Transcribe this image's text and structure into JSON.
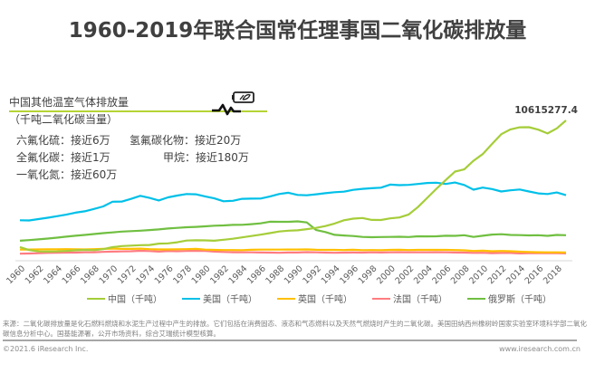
{
  "title": "1960-2019年联合国常任理事国二氧化碳排放量",
  "side_note": {
    "heading": "中国其他温室气体排放量",
    "subheading": "（千吨二氧化碳当量）",
    "items": [
      {
        "name": "六氟化硫：",
        "value": "接近6万"
      },
      {
        "name": "氢氟碳化物：",
        "value": "接近20万"
      },
      {
        "name": "全氟化碳：",
        "value": "接近1万"
      },
      {
        "name": "甲烷：",
        "value": "接近180万"
      },
      {
        "name": "一氧化氮：",
        "value": "接近60万"
      }
    ],
    "icon": "battery-leaf-pulse-icon"
  },
  "chart_data": {
    "type": "line",
    "title": "1960-2019年联合国常任理事国二氧化碳排放量",
    "xlabel": "",
    "ylabel": "千吨",
    "grid": false,
    "legend_position": "bottom",
    "x": [
      1960,
      1961,
      1962,
      1963,
      1964,
      1965,
      1966,
      1967,
      1968,
      1969,
      1970,
      1971,
      1972,
      1973,
      1974,
      1975,
      1976,
      1977,
      1978,
      1979,
      1980,
      1981,
      1982,
      1983,
      1984,
      1985,
      1986,
      1987,
      1988,
      1989,
      1990,
      1991,
      1992,
      1993,
      1994,
      1995,
      1996,
      1997,
      1998,
      1999,
      2000,
      2001,
      2002,
      2003,
      2004,
      2005,
      2006,
      2007,
      2008,
      2009,
      2010,
      2011,
      2012,
      2013,
      2014,
      2015,
      2016,
      2017,
      2018,
      2019
    ],
    "x_tick_labels": [
      "1960",
      "1962",
      "1964",
      "1966",
      "1968",
      "1970",
      "1972",
      "1974",
      "1976",
      "1978",
      "1980",
      "1982",
      "1984",
      "1986",
      "1988",
      "1990",
      "1992",
      "1994",
      "1996",
      "1998",
      "2000",
      "2002",
      "2004",
      "2006",
      "2008",
      "2010",
      "2012",
      "2014",
      "2016",
      "2018"
    ],
    "ylim": [
      0,
      11000000
    ],
    "annotation": {
      "series": "中国（千吨）",
      "x": 2019,
      "label": "10615277.4"
    },
    "series": [
      {
        "name": "中国（千吨）",
        "color": "#a5cd39",
        "values": [
          780000,
          550000,
          440000,
          430000,
          440000,
          480000,
          530000,
          560000,
          540000,
          620000,
          770000,
          860000,
          890000,
          930000,
          940000,
          1050000,
          1070000,
          1150000,
          1290000,
          1310000,
          1300000,
          1270000,
          1350000,
          1430000,
          1530000,
          1640000,
          1740000,
          1860000,
          1990000,
          2050000,
          2080000,
          2170000,
          2270000,
          2410000,
          2610000,
          2860000,
          2990000,
          3040000,
          2890000,
          2880000,
          3010000,
          3080000,
          3310000,
          3890000,
          4600000,
          5310000,
          5980000,
          6640000,
          6810000,
          7480000,
          8000000,
          8780000,
          9550000,
          9920000,
          10080000,
          10090000,
          9900000,
          9600000,
          10000000,
          10615277.4
        ]
      },
      {
        "name": "美国（千吨）",
        "color": "#00c0e8",
        "values": [
          2860000,
          2850000,
          2950000,
          3060000,
          3180000,
          3300000,
          3450000,
          3560000,
          3740000,
          3940000,
          4300000,
          4310000,
          4520000,
          4760000,
          4600000,
          4400000,
          4640000,
          4780000,
          4900000,
          4880000,
          4720000,
          4560000,
          4340000,
          4370000,
          4530000,
          4540000,
          4550000,
          4700000,
          4900000,
          5000000,
          4830000,
          4800000,
          4880000,
          4960000,
          5040000,
          5080000,
          5220000,
          5300000,
          5350000,
          5390000,
          5630000,
          5590000,
          5610000,
          5680000,
          5760000,
          5780000,
          5680000,
          5790000,
          5600000,
          5240000,
          5400000,
          5290000,
          5100000,
          5190000,
          5250000,
          5100000,
          4950000,
          4900000,
          5020000,
          4810000
        ]
      },
      {
        "name": "英国（千吨）",
        "color": "#ffc000",
        "values": [
          585000,
          590000,
          600000,
          610000,
          605000,
          620000,
          615000,
          600000,
          620000,
          640000,
          660000,
          640000,
          640000,
          660000,
          620000,
          600000,
          600000,
          610000,
          620000,
          640000,
          580000,
          560000,
          550000,
          550000,
          540000,
          570000,
          580000,
          580000,
          580000,
          590000,
          590000,
          600000,
          570000,
          560000,
          560000,
          550000,
          570000,
          540000,
          550000,
          540000,
          560000,
          570000,
          550000,
          560000,
          560000,
          560000,
          560000,
          550000,
          530000,
          480000,
          500000,
          460000,
          480000,
          460000,
          420000,
          400000,
          380000,
          370000,
          370000,
          360000
        ]
      },
      {
        "name": "法国（千吨）",
        "color": "#ff7c80",
        "values": [
          270000,
          280000,
          300000,
          330000,
          340000,
          350000,
          350000,
          370000,
          380000,
          410000,
          430000,
          440000,
          460000,
          490000,
          470000,
          430000,
          470000,
          460000,
          480000,
          490000,
          480000,
          430000,
          400000,
          380000,
          370000,
          370000,
          360000,
          350000,
          340000,
          360000,
          360000,
          390000,
          370000,
          350000,
          340000,
          350000,
          360000,
          350000,
          370000,
          360000,
          370000,
          380000,
          370000,
          370000,
          370000,
          380000,
          370000,
          360000,
          350000,
          330000,
          340000,
          310000,
          320000,
          320000,
          290000,
          300000,
          310000,
          310000,
          300000,
          290000
        ]
      },
      {
        "name": "俄罗斯（千吨）",
        "color": "#70bf41",
        "values": [
          1270000,
          1320000,
          1380000,
          1440000,
          1510000,
          1590000,
          1660000,
          1720000,
          1790000,
          1860000,
          1920000,
          1980000,
          2020000,
          2050000,
          2100000,
          2150000,
          2220000,
          2270000,
          2320000,
          2350000,
          2390000,
          2440000,
          2460000,
          2500000,
          2510000,
          2560000,
          2620000,
          2750000,
          2740000,
          2740000,
          2780000,
          2690000,
          2100000,
          1950000,
          1730000,
          1680000,
          1640000,
          1570000,
          1550000,
          1560000,
          1570000,
          1580000,
          1560000,
          1620000,
          1610000,
          1620000,
          1660000,
          1650000,
          1700000,
          1570000,
          1660000,
          1750000,
          1780000,
          1720000,
          1710000,
          1690000,
          1700000,
          1650000,
          1720000,
          1700000
        ]
      }
    ]
  },
  "legend": [
    {
      "label": "中国（千吨）",
      "color": "#a5cd39"
    },
    {
      "label": "美国（千吨）",
      "color": "#00c0e8"
    },
    {
      "label": "英国（千吨）",
      "color": "#ffc000"
    },
    {
      "label": "法国（千吨）",
      "color": "#ff7c80"
    },
    {
      "label": "俄罗斯（千吨）",
      "color": "#70bf41"
    }
  ],
  "footer": {
    "source": "来源：二氧化碳排放量是化石燃料燃烧和水泥生产过程中产生的排放。它们包括在消费固态、液态和气态燃料以及天然气燃烧时产生的二氧化碳。美国田纳西州橡树岭国家实验室环境科学部二氧化碳信息分析中心。国基能源署，公开市场资料，综合艾瑞统计模型核算。",
    "copyright": "©2021.6 iResearch Inc.",
    "url": "www.iresearch.com.cn"
  }
}
